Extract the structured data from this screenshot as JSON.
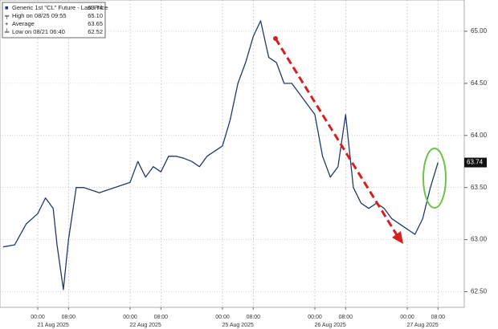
{
  "chart_data": {
    "type": "line",
    "legend": [
      {
        "text": "Generic 1st \"CL\" Future - Last Price",
        "value": "63.74"
      },
      {
        "text": "High on 08/25 09:55",
        "value": "65.10"
      },
      {
        "text": "Average",
        "value": "63.65"
      },
      {
        "text": "Low on 08/21 06:40",
        "value": "62.52"
      }
    ],
    "series": [
      {
        "name": "Generic 1st \"CL\" Future - Last Price",
        "color": "#1f3a6e",
        "x": [
          "2025-08-20T15:00",
          "2025-08-20T18:00",
          "2025-08-20T21:00",
          "2025-08-21T00:00",
          "2025-08-21T02:00",
          "2025-08-21T04:00",
          "2025-08-21T05:00",
          "2025-08-21T06:40",
          "2025-08-21T08:00",
          "2025-08-21T10:00",
          "2025-08-21T12:00",
          "2025-08-21T16:00",
          "2025-08-21T20:00",
          "2025-08-22T00:00",
          "2025-08-22T02:00",
          "2025-08-22T04:00",
          "2025-08-22T06:00",
          "2025-08-22T08:00",
          "2025-08-22T10:00",
          "2025-08-22T12:00",
          "2025-08-22T14:00",
          "2025-08-22T16:00",
          "2025-08-22T18:00",
          "2025-08-22T20:00",
          "2025-08-25T00:00",
          "2025-08-25T02:00",
          "2025-08-25T04:00",
          "2025-08-25T06:00",
          "2025-08-25T08:00",
          "2025-08-25T09:55",
          "2025-08-25T12:00",
          "2025-08-25T14:00",
          "2025-08-25T16:00",
          "2025-08-25T18:00",
          "2025-08-25T20:00",
          "2025-08-26T00:00",
          "2025-08-26T02:00",
          "2025-08-26T04:00",
          "2025-08-26T06:00",
          "2025-08-26T08:00",
          "2025-08-26T10:00",
          "2025-08-26T12:00",
          "2025-08-26T14:00",
          "2025-08-26T16:00",
          "2025-08-26T18:00",
          "2025-08-26T20:00",
          "2025-08-26T22:00",
          "2025-08-27T00:00",
          "2025-08-27T02:00",
          "2025-08-27T04:00",
          "2025-08-27T06:00",
          "2025-08-27T08:00"
        ],
        "values": [
          62.93,
          62.95,
          63.15,
          63.25,
          63.4,
          63.3,
          62.95,
          62.52,
          63.0,
          63.5,
          63.5,
          63.45,
          63.5,
          63.55,
          63.75,
          63.6,
          63.7,
          63.65,
          63.8,
          63.8,
          63.78,
          63.75,
          63.7,
          63.8,
          63.9,
          64.15,
          64.5,
          64.7,
          64.95,
          65.1,
          64.75,
          64.7,
          64.5,
          64.5,
          64.4,
          64.2,
          63.8,
          63.6,
          63.7,
          64.2,
          63.5,
          63.35,
          63.3,
          63.35,
          63.3,
          63.2,
          63.15,
          63.1,
          63.05,
          63.2,
          63.5,
          63.74
        ]
      }
    ],
    "ylim": [
      62.35,
      65.3
    ],
    "yticks": [
      {
        "value": 62.5,
        "label": "62.50"
      },
      {
        "value": 63.0,
        "label": "63.00"
      },
      {
        "value": 63.5,
        "label": "63.50"
      },
      {
        "value": 64.0,
        "label": "64.00"
      },
      {
        "value": 64.5,
        "label": "64.50"
      },
      {
        "value": 65.0,
        "label": "65.00"
      }
    ],
    "xticks": [
      {
        "value": "2025-08-21T00:00",
        "label": "00:00"
      },
      {
        "value": "2025-08-21T08:00",
        "label": "08:00"
      },
      {
        "value": "2025-08-22T00:00",
        "label": "00:00"
      },
      {
        "value": "2025-08-22T08:00",
        "label": "08:00"
      },
      {
        "value": "2025-08-25T00:00",
        "label": "00:00"
      },
      {
        "value": "2025-08-25T08:00",
        "label": "08:00"
      },
      {
        "value": "2025-08-26T00:00",
        "label": "00:00"
      },
      {
        "value": "2025-08-26T08:00",
        "label": "08:00"
      },
      {
        "value": "2025-08-27T00:00",
        "label": "00:00"
      },
      {
        "value": "2025-08-27T08:00",
        "label": "08:00"
      }
    ],
    "date_labels": [
      {
        "value": "2025-08-21T04:00",
        "label": "21 Aug 2025"
      },
      {
        "value": "2025-08-22T04:00",
        "label": "22 Aug 2025"
      },
      {
        "value": "2025-08-25T04:00",
        "label": "25 Aug 2025"
      },
      {
        "value": "2025-08-26T04:00",
        "label": "26 Aug 2025"
      },
      {
        "value": "2025-08-27T04:00",
        "label": "27 Aug 2025"
      }
    ],
    "grid": true
  }
}
